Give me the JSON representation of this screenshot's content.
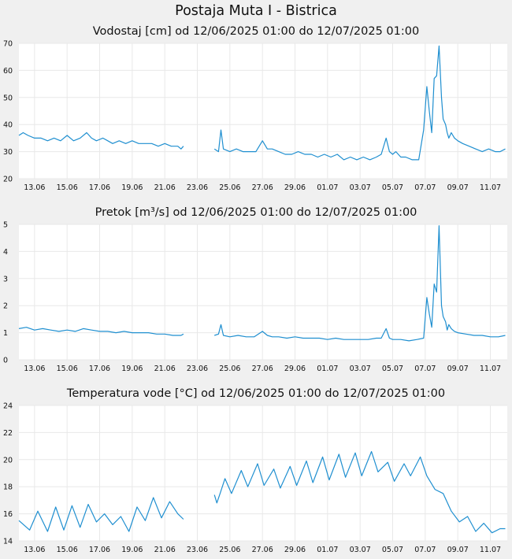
{
  "title": "Postaja Muta I - Bistrica",
  "colors": {
    "background": "#f0f0f0",
    "plot_bg": "#ffffff",
    "grid": "#e8e8e8",
    "line": "#1f8fd0"
  },
  "chart_data": [
    {
      "type": "line",
      "title": "Vodostaj [cm] od 12/06/2025 01:00 do 12/07/2025 01:00",
      "x_ticks": [
        "13.06",
        "15.06",
        "17.06",
        "19.06",
        "21.06",
        "23.06",
        "25.06",
        "27.06",
        "29.06",
        "01.07",
        "03.07",
        "05.07",
        "07.07",
        "09.07",
        "11.07"
      ],
      "y_ticks": [
        "20",
        "30",
        "40",
        "50",
        "60",
        "70"
      ],
      "ylim": [
        20,
        70
      ],
      "grid": true,
      "series": [
        {
          "x": [
            12.04,
            12.3,
            12.6,
            13.0,
            13.4,
            13.8,
            14.2,
            14.6,
            15.0,
            15.4,
            15.8,
            16.2,
            16.5,
            16.8,
            17.2,
            17.5,
            17.8,
            18.2,
            18.6,
            19.0,
            19.4,
            19.8,
            20.2,
            20.6,
            21.0,
            21.4,
            21.8,
            22.0,
            22.15,
            24.05,
            24.3,
            24.45,
            24.6,
            25.0,
            25.4,
            25.8,
            26.2,
            26.6,
            27.0,
            27.3,
            27.6,
            28.0,
            28.4,
            28.8,
            29.2,
            29.6,
            30.0,
            30.4,
            30.8,
            31.2,
            31.6,
            32.0,
            32.4,
            32.8,
            33.2,
            33.6,
            34.0,
            34.3,
            34.6,
            34.8,
            35.0,
            35.2,
            35.5,
            35.8,
            36.2,
            36.6,
            36.9,
            37.1,
            37.25,
            37.4,
            37.55,
            37.7,
            37.85,
            38.0,
            38.1,
            38.25,
            38.35,
            38.45,
            38.6,
            38.8,
            39.0,
            39.3,
            39.7,
            40.1,
            40.5,
            40.9,
            41.3,
            41.6,
            41.92
          ],
          "y": [
            36,
            37,
            36,
            35,
            35,
            34,
            35,
            34,
            36,
            34,
            35,
            37,
            35,
            34,
            35,
            34,
            33,
            34,
            33,
            34,
            33,
            33,
            33,
            32,
            33,
            32,
            32,
            31,
            32,
            31,
            30,
            38,
            31,
            30,
            31,
            30,
            30,
            30,
            34,
            31,
            31,
            30,
            29,
            29,
            30,
            29,
            29,
            28,
            29,
            28,
            29,
            27,
            28,
            27,
            28,
            27,
            28,
            29,
            35,
            30,
            29,
            30,
            28,
            28,
            27,
            27,
            38,
            54,
            45,
            37,
            57,
            58,
            69,
            50,
            42,
            40,
            37,
            35,
            37,
            35,
            34,
            33,
            32,
            31,
            30,
            31,
            30,
            30,
            31
          ],
          "breaks_after": [
            28
          ]
        }
      ]
    },
    {
      "type": "line",
      "title": "Pretok [m³/s] od 12/06/2025 01:00 do 12/07/2025 01:00",
      "x_ticks": [
        "13.06",
        "15.06",
        "17.06",
        "19.06",
        "21.06",
        "23.06",
        "25.06",
        "27.06",
        "29.06",
        "01.07",
        "03.07",
        "05.07",
        "07.07",
        "09.07",
        "11.07"
      ],
      "y_ticks": [
        "0",
        "1",
        "2",
        "3",
        "4",
        "5"
      ],
      "ylim": [
        0,
        5
      ],
      "grid": true,
      "series": [
        {
          "x": [
            12.04,
            12.5,
            13.0,
            13.5,
            14.0,
            14.5,
            15.0,
            15.5,
            16.0,
            16.5,
            17.0,
            17.5,
            18.0,
            18.5,
            19.0,
            19.5,
            20.0,
            20.5,
            21.0,
            21.5,
            22.0,
            22.15,
            24.05,
            24.3,
            24.45,
            24.6,
            25.0,
            25.5,
            26.0,
            26.5,
            27.0,
            27.3,
            27.6,
            28.0,
            28.5,
            29.0,
            29.5,
            30.0,
            30.5,
            31.0,
            31.5,
            32.0,
            32.5,
            33.0,
            33.5,
            34.0,
            34.3,
            34.6,
            34.8,
            35.0,
            35.5,
            36.0,
            36.5,
            36.9,
            37.1,
            37.25,
            37.4,
            37.55,
            37.7,
            37.85,
            38.0,
            38.1,
            38.25,
            38.35,
            38.45,
            38.6,
            38.8,
            39.0,
            39.5,
            40.0,
            40.5,
            41.0,
            41.5,
            41.92
          ],
          "y": [
            1.15,
            1.2,
            1.1,
            1.15,
            1.1,
            1.05,
            1.1,
            1.05,
            1.15,
            1.1,
            1.05,
            1.05,
            1.0,
            1.05,
            1.0,
            1.0,
            1.0,
            0.95,
            0.95,
            0.9,
            0.9,
            0.95,
            0.9,
            0.95,
            1.3,
            0.9,
            0.85,
            0.9,
            0.85,
            0.85,
            1.05,
            0.9,
            0.85,
            0.85,
            0.8,
            0.85,
            0.8,
            0.8,
            0.8,
            0.75,
            0.8,
            0.75,
            0.75,
            0.75,
            0.75,
            0.8,
            0.8,
            1.15,
            0.8,
            0.75,
            0.75,
            0.7,
            0.75,
            0.8,
            2.3,
            1.7,
            1.2,
            2.8,
            2.5,
            4.95,
            2.0,
            1.6,
            1.4,
            1.1,
            1.3,
            1.15,
            1.05,
            1.0,
            0.95,
            0.9,
            0.9,
            0.85,
            0.85,
            0.9
          ],
          "breaks_after": [
            21
          ]
        }
      ]
    },
    {
      "type": "line",
      "title": "Temperatura vode [°C] od 12/06/2025 01:00 do 12/07/2025 01:00",
      "x_ticks": [
        "13.06",
        "15.06",
        "17.06",
        "19.06",
        "21.06",
        "23.06",
        "25.06",
        "27.06",
        "29.06",
        "01.07",
        "03.07",
        "05.07",
        "07.07",
        "09.07",
        "11.07"
      ],
      "y_ticks": [
        "14",
        "16",
        "18",
        "20",
        "22",
        "24"
      ],
      "ylim": [
        14,
        24
      ],
      "grid": true,
      "series": [
        {
          "x": [
            12.04,
            12.7,
            13.2,
            13.8,
            14.3,
            14.8,
            15.3,
            15.8,
            16.3,
            16.8,
            17.3,
            17.8,
            18.3,
            18.8,
            19.3,
            19.8,
            20.3,
            20.8,
            21.3,
            21.8,
            22.15,
            24.05,
            24.2,
            24.4,
            24.7,
            25.1,
            25.7,
            26.1,
            26.7,
            27.1,
            27.7,
            28.1,
            28.7,
            29.1,
            29.7,
            30.1,
            30.7,
            31.1,
            31.7,
            32.1,
            32.7,
            33.1,
            33.7,
            34.1,
            34.7,
            35.1,
            35.7,
            36.1,
            36.7,
            37.1,
            37.6,
            38.1,
            38.6,
            39.1,
            39.6,
            40.1,
            40.6,
            41.1,
            41.6,
            41.92
          ],
          "y": [
            15.5,
            14.8,
            16.2,
            14.7,
            16.5,
            14.8,
            16.6,
            15.0,
            16.7,
            15.4,
            16.0,
            15.2,
            15.8,
            14.7,
            16.5,
            15.5,
            17.2,
            15.7,
            16.9,
            16.0,
            15.6,
            17.4,
            16.8,
            17.5,
            18.6,
            17.5,
            19.2,
            18.0,
            19.7,
            18.1,
            19.3,
            17.9,
            19.5,
            18.1,
            19.9,
            18.3,
            20.2,
            18.5,
            20.4,
            18.7,
            20.5,
            18.8,
            20.6,
            19.1,
            19.8,
            18.4,
            19.7,
            18.8,
            20.2,
            18.8,
            17.8,
            17.5,
            16.2,
            15.4,
            15.8,
            14.7,
            15.3,
            14.6,
            14.9,
            14.9
          ],
          "breaks_after": [
            20
          ]
        }
      ]
    }
  ]
}
